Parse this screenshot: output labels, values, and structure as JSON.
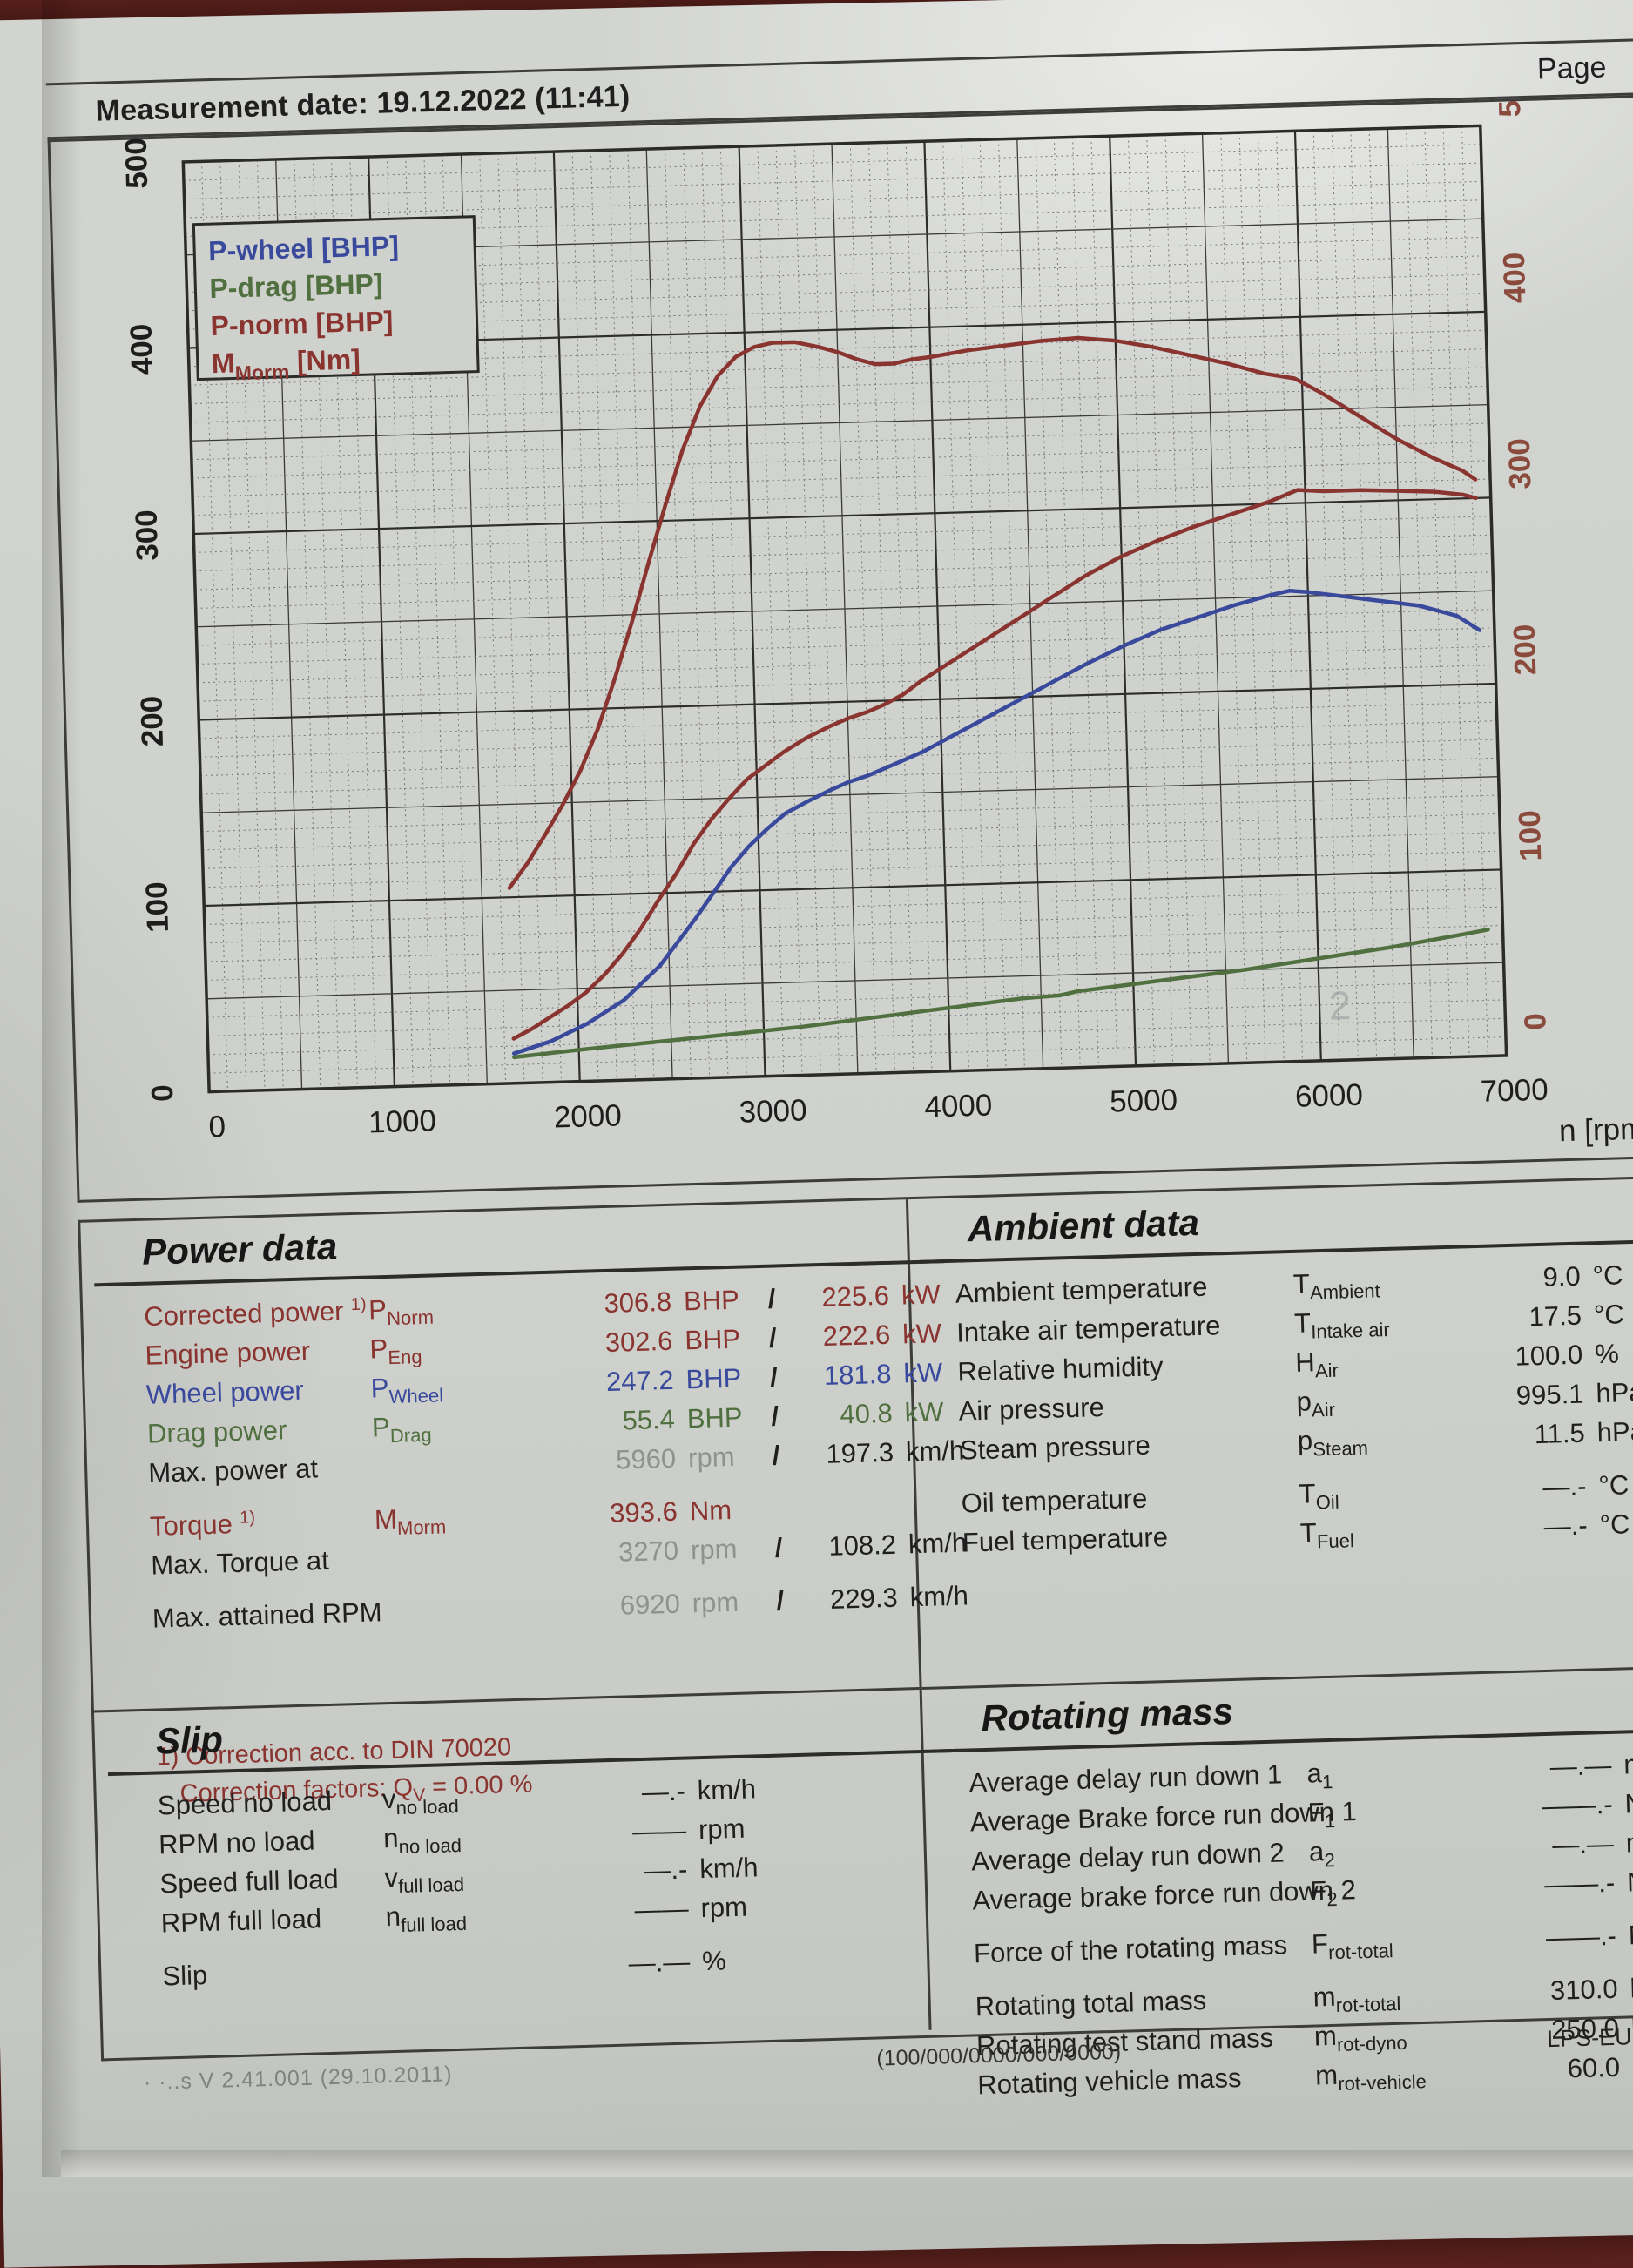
{
  "header": {
    "measurement_date": "Measurement date: 19.12.2022 (11:41)",
    "page_label": "Page"
  },
  "chart_data": {
    "type": "line",
    "title": "",
    "xlabel": "n [rpm]",
    "xlim": [
      0,
      7000
    ],
    "ylim": [
      0,
      500
    ],
    "grid": "on",
    "x_ticks": [
      0,
      1000,
      2000,
      3000,
      4000,
      5000,
      6000,
      7000
    ],
    "y_ticks": [
      0,
      100,
      200,
      300,
      400,
      500
    ],
    "legend_position": "top-left",
    "legend": [
      {
        "label": "P-wheel [BHP]",
        "color": "#39499c"
      },
      {
        "label": "P-drag [BHP]",
        "color": "#50703f"
      },
      {
        "label": "P-norm [BHP]",
        "color": "#8a3430"
      },
      {
        "label": "M_Morm [Nm]",
        "main": "M",
        "sub": "Morm",
        "unit": " [Nm]",
        "color": "#8a3430"
      }
    ],
    "watermark": "2",
    "colors": {
      "axis_left": "#1c1d1c",
      "axis_right": "#8a4a3c",
      "grid_minor": "#777",
      "grid_major": "#3a3a3a"
    },
    "series": [
      {
        "name": "M_Morm [Nm]",
        "color": "#8a3430",
        "points": [
          [
            1650,
            105
          ],
          [
            1750,
            118
          ],
          [
            1850,
            133
          ],
          [
            1950,
            149
          ],
          [
            2050,
            167
          ],
          [
            2150,
            189
          ],
          [
            2250,
            216
          ],
          [
            2350,
            246
          ],
          [
            2450,
            278
          ],
          [
            2550,
            309
          ],
          [
            2650,
            338
          ],
          [
            2750,
            361
          ],
          [
            2850,
            377
          ],
          [
            2950,
            387
          ],
          [
            3050,
            392
          ],
          [
            3150,
            394
          ],
          [
            3270,
            394
          ],
          [
            3400,
            391
          ],
          [
            3500,
            388
          ],
          [
            3600,
            384
          ],
          [
            3700,
            381
          ],
          [
            3800,
            381
          ],
          [
            3900,
            383
          ],
          [
            4000,
            384
          ],
          [
            4200,
            387
          ],
          [
            4400,
            389
          ],
          [
            4600,
            391
          ],
          [
            4800,
            392
          ],
          [
            5000,
            390
          ],
          [
            5200,
            386
          ],
          [
            5400,
            381
          ],
          [
            5600,
            376
          ],
          [
            5800,
            370
          ],
          [
            5960,
            367
          ],
          [
            6100,
            359
          ],
          [
            6300,
            346
          ],
          [
            6500,
            333
          ],
          [
            6700,
            322
          ],
          [
            6850,
            315
          ],
          [
            6920,
            310
          ]
        ]
      },
      {
        "name": "P-norm [BHP]",
        "color": "#8a3430",
        "points": [
          [
            1650,
            24
          ],
          [
            1750,
            29
          ],
          [
            1850,
            35
          ],
          [
            1950,
            41
          ],
          [
            2050,
            48
          ],
          [
            2150,
            57
          ],
          [
            2250,
            68
          ],
          [
            2350,
            81
          ],
          [
            2450,
            96
          ],
          [
            2550,
            110
          ],
          [
            2650,
            126
          ],
          [
            2750,
            139
          ],
          [
            2850,
            150
          ],
          [
            2950,
            160
          ],
          [
            3050,
            167
          ],
          [
            3150,
            174
          ],
          [
            3270,
            181
          ],
          [
            3400,
            187
          ],
          [
            3500,
            191
          ],
          [
            3600,
            194
          ],
          [
            3700,
            198
          ],
          [
            3800,
            203
          ],
          [
            3900,
            210
          ],
          [
            4000,
            216
          ],
          [
            4200,
            228
          ],
          [
            4400,
            240
          ],
          [
            4600,
            252
          ],
          [
            4800,
            264
          ],
          [
            5000,
            274
          ],
          [
            5200,
            282
          ],
          [
            5400,
            289
          ],
          [
            5600,
            295
          ],
          [
            5800,
            301
          ],
          [
            5960,
            307
          ],
          [
            6100,
            306
          ],
          [
            6300,
            306
          ],
          [
            6500,
            305
          ],
          [
            6700,
            304
          ],
          [
            6850,
            302
          ],
          [
            6920,
            300
          ]
        ]
      },
      {
        "name": "P-wheel [BHP]",
        "color": "#39499c",
        "points": [
          [
            1650,
            16
          ],
          [
            1850,
            22
          ],
          [
            2050,
            31
          ],
          [
            2250,
            43
          ],
          [
            2450,
            61
          ],
          [
            2650,
            86
          ],
          [
            2850,
            113
          ],
          [
            2950,
            124
          ],
          [
            3050,
            133
          ],
          [
            3150,
            141
          ],
          [
            3270,
            147
          ],
          [
            3400,
            153
          ],
          [
            3500,
            157
          ],
          [
            3600,
            160
          ],
          [
            3700,
            164
          ],
          [
            3800,
            168
          ],
          [
            3900,
            172
          ],
          [
            4000,
            177
          ],
          [
            4200,
            187
          ],
          [
            4400,
            197
          ],
          [
            4600,
            207
          ],
          [
            4800,
            217
          ],
          [
            5000,
            226
          ],
          [
            5200,
            234
          ],
          [
            5400,
            240
          ],
          [
            5600,
            246
          ],
          [
            5800,
            251
          ],
          [
            5900,
            253
          ],
          [
            6000,
            252
          ],
          [
            6200,
            249
          ],
          [
            6400,
            246
          ],
          [
            6600,
            243
          ],
          [
            6800,
            237
          ],
          [
            6920,
            229
          ]
        ]
      },
      {
        "name": "P-drag [BHP]",
        "color": "#50703f",
        "points": [
          [
            1650,
            14
          ],
          [
            2000,
            17
          ],
          [
            2400,
            20
          ],
          [
            2800,
            23
          ],
          [
            3200,
            26
          ],
          [
            3600,
            30
          ],
          [
            4000,
            34
          ],
          [
            4400,
            38
          ],
          [
            4600,
            39
          ],
          [
            4700,
            41
          ],
          [
            4800,
            42
          ],
          [
            5200,
            46
          ],
          [
            5600,
            50
          ],
          [
            6000,
            55
          ],
          [
            6400,
            60
          ],
          [
            6800,
            66
          ],
          [
            6920,
            68
          ]
        ]
      }
    ]
  },
  "power_data": {
    "title": "Power data",
    "rows": [
      {
        "label": "Corrected power",
        "sup": "1)",
        "sym": "P",
        "sub": "Norm",
        "v1": "306.8",
        "u1": "BHP",
        "sl": "/",
        "v2": "225.6",
        "u2": "kW",
        "color": "red"
      },
      {
        "label": "Engine power",
        "sym": "P",
        "sub": "Eng",
        "v1": "302.6",
        "u1": "BHP",
        "sl": "/",
        "v2": "222.6",
        "u2": "kW",
        "color": "red"
      },
      {
        "label": "Wheel power",
        "sym": "P",
        "sub": "Wheel",
        "v1": "247.2",
        "u1": "BHP",
        "sl": "/",
        "v2": "181.8",
        "u2": "kW",
        "color": "blue"
      },
      {
        "label": "Drag power",
        "sym": "P",
        "sub": "Drag",
        "v1": "55.4",
        "u1": "BHP",
        "sl": "/",
        "v2": "40.8",
        "u2": "kW",
        "color": "green"
      },
      {
        "label": "Max. power at",
        "v1": "5960",
        "u1": "rpm",
        "sl": "/",
        "v2": "197.3",
        "u2": "km/h",
        "color": "mixed"
      },
      {
        "gap": true
      },
      {
        "label": "Torque",
        "sup": "1)",
        "sym": "M",
        "sub": "Morm",
        "v1": "393.6",
        "u1": "Nm",
        "color": "red"
      },
      {
        "label": "Max. Torque at",
        "v1": "3270",
        "u1": "rpm",
        "sl": "/",
        "v2": "108.2",
        "u2": "km/h",
        "color": "mixed"
      },
      {
        "gap": true
      },
      {
        "label": "Max. attained RPM",
        "v1": "6920",
        "u1": "rpm",
        "sl": "/",
        "v2": "229.3",
        "u2": "km/h",
        "color": "mixed"
      }
    ],
    "footnote1": "1) Correction acc. to DIN 70020",
    "footnote2_pre": "Correction factors: Q",
    "footnote2_sub": "V",
    "footnote2_post": " =  0.00 %"
  },
  "ambient_data": {
    "title": "Ambient data",
    "rows": [
      {
        "label": "Ambient temperature",
        "sym": "T",
        "sub": "Ambient",
        "v1": "9.0",
        "u1": "°C",
        "color": "black"
      },
      {
        "label": "Intake air temperature",
        "sym": "T",
        "sub": "Intake air",
        "v1": "17.5",
        "u1": "°C",
        "color": "black"
      },
      {
        "label": "Relative humidity",
        "sym": "H",
        "sub": "Air",
        "v1": "100.0",
        "u1": "%",
        "color": "black"
      },
      {
        "label": "Air pressure",
        "sym": "p",
        "sub": "Air",
        "v1": "995.1",
        "u1": "hPa",
        "color": "black"
      },
      {
        "label": "Steam pressure",
        "sym": "p",
        "sub": "Steam",
        "v1": "11.5",
        "u1": "hPa",
        "color": "black"
      },
      {
        "gap": true
      },
      {
        "label": "Oil temperature",
        "sym": "T",
        "sub": "Oil",
        "v1": "—.-",
        "u1": "°C",
        "color": "black"
      },
      {
        "label": "Fuel temperature",
        "sym": "T",
        "sub": "Fuel",
        "v1": "—.-",
        "u1": "°C",
        "color": "black"
      }
    ]
  },
  "slip": {
    "title": "Slip",
    "rows": [
      {
        "label": "Speed no load",
        "sym": "v",
        "sub": "no load",
        "v1": "—.-",
        "u1": "km/h",
        "color": "black"
      },
      {
        "label": "RPM no load",
        "sym": "n",
        "sub": "no load",
        "v1": "——",
        "u1": "rpm",
        "color": "black"
      },
      {
        "label": "Speed full load",
        "sym": "v",
        "sub": "full load",
        "v1": "—.-",
        "u1": "km/h",
        "color": "black"
      },
      {
        "label": "RPM full load",
        "sym": "n",
        "sub": "full load",
        "v1": "——",
        "u1": "rpm",
        "color": "black"
      },
      {
        "gap": true
      },
      {
        "label": "Slip",
        "v1": "—.—",
        "u1": "%",
        "color": "black"
      }
    ]
  },
  "rotating_mass": {
    "title": "Rotating mass",
    "rows": [
      {
        "label": "Average delay run down 1",
        "sym": "a",
        "sub": "1",
        "v1": "—.—",
        "u1": "m",
        "color": "black",
        "wide": true
      },
      {
        "label": "Average Brake force run down 1",
        "sym": "F",
        "sub": "1",
        "v1": "——.-",
        "u1": "N",
        "color": "black",
        "wide": true
      },
      {
        "label": "Average delay run down 2",
        "sym": "a",
        "sub": "2",
        "v1": "—.—",
        "u1": "m",
        "color": "black",
        "wide": true
      },
      {
        "label": "Average brake force run down 2",
        "sym": "F",
        "sub": "2",
        "v1": "——.-",
        "u1": "N",
        "color": "black",
        "wide": true
      },
      {
        "gap": true
      },
      {
        "label": "Force of the rotating mass",
        "sym": "F",
        "sub": "rot-total",
        "v1": "——.-",
        "u1": "N",
        "color": "black",
        "wide": true
      },
      {
        "gap": true
      },
      {
        "label": "Rotating total mass",
        "sym": "m",
        "sub": "rot-total",
        "v1": "310.0",
        "u1": "kg",
        "color": "black",
        "wide": true
      },
      {
        "label": "Rotating test stand mass",
        "sym": "m",
        "sub": "rot-dyno",
        "v1": "250.0",
        "u1": "kg",
        "color": "black",
        "wide": true
      },
      {
        "label": "Rotating vehicle mass",
        "sym": "m",
        "sub": "rot-vehicle",
        "v1": "60.0",
        "u1": "kg",
        "color": "black",
        "wide": true
      }
    ]
  },
  "footer": {
    "left": "· ·..s V 2.41.001 (29.10.2011)",
    "center": "(100/000/0000/000/0000)",
    "right": "LPS-EURO"
  }
}
